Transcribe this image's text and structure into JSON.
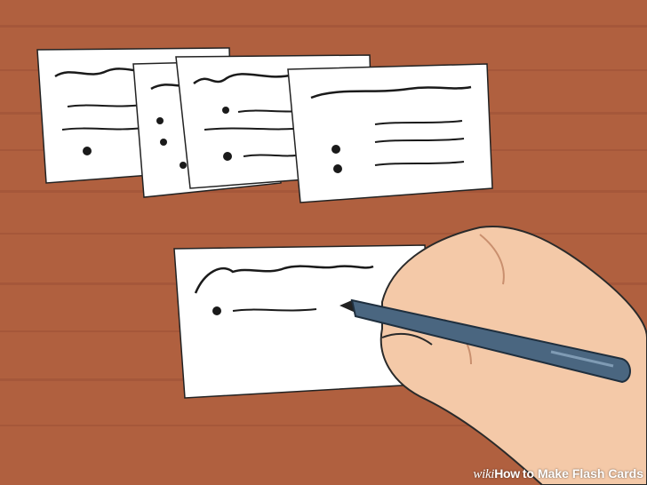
{
  "watermark": {
    "brand_prefix": "wiki",
    "brand_suffix": "How",
    "title": " to Make Flash Cards"
  },
  "colors": {
    "table": "#b0603f",
    "table_stripe": "#a5573a",
    "card": "#ffffff",
    "ink": "#1a1a1a",
    "skin": "#f4c9a8",
    "pen": "#4a6680"
  },
  "icons": [
    "flash-card",
    "hand",
    "pen"
  ]
}
